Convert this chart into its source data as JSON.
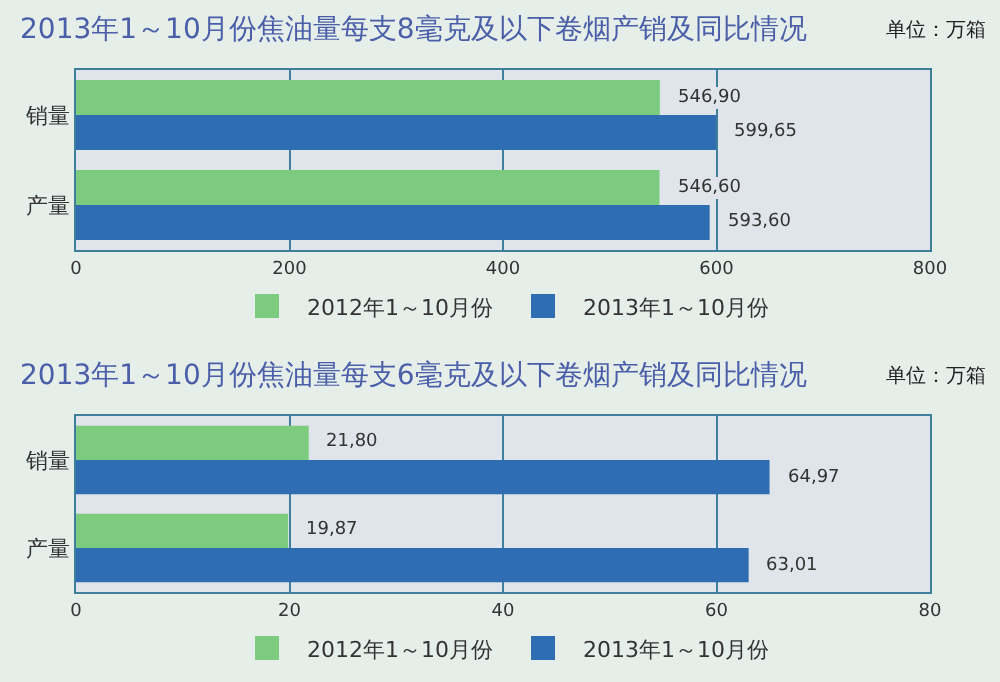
{
  "chart_data": [
    {
      "type": "bar",
      "orientation": "horizontal",
      "title": "2013年1～10月份焦油量每支8毫克及以下卷烟产销及同比情况",
      "annotations": [
        "单位：万箱"
      ],
      "categories": [
        "销量",
        "产量"
      ],
      "series": [
        {
          "name": "2012年1～10月份",
          "color": "#7ccb7e",
          "values": [
            546.9,
            546.6
          ],
          "value_labels": [
            "546,90",
            "546,60"
          ]
        },
        {
          "name": "2013年1～10月份",
          "color": "#2f6db3",
          "values": [
            599.65,
            593.6
          ],
          "value_labels": [
            "599,65",
            "593,60"
          ]
        }
      ],
      "xlim": [
        0,
        800
      ],
      "xticks": [
        0,
        200,
        400,
        600,
        800
      ],
      "grid": "x",
      "legend": "bottom"
    },
    {
      "type": "bar",
      "orientation": "horizontal",
      "title": "2013年1～10月份焦油量每支6毫克及以下卷烟产销及同比情况",
      "annotations": [
        "单位：万箱"
      ],
      "categories": [
        "销量",
        "产量"
      ],
      "series": [
        {
          "name": "2012年1～10月份",
          "color": "#7ccb7e",
          "values": [
            21.8,
            19.87
          ],
          "value_labels": [
            "21,80",
            "19,87"
          ]
        },
        {
          "name": "2013年1～10月份",
          "color": "#2f6db3",
          "values": [
            64.97,
            63.01
          ],
          "value_labels": [
            "64,97",
            "63,01"
          ]
        }
      ],
      "xlim": [
        0,
        80
      ],
      "xticks": [
        0,
        20,
        40,
        60,
        80
      ],
      "grid": "x",
      "legend": "bottom"
    }
  ]
}
